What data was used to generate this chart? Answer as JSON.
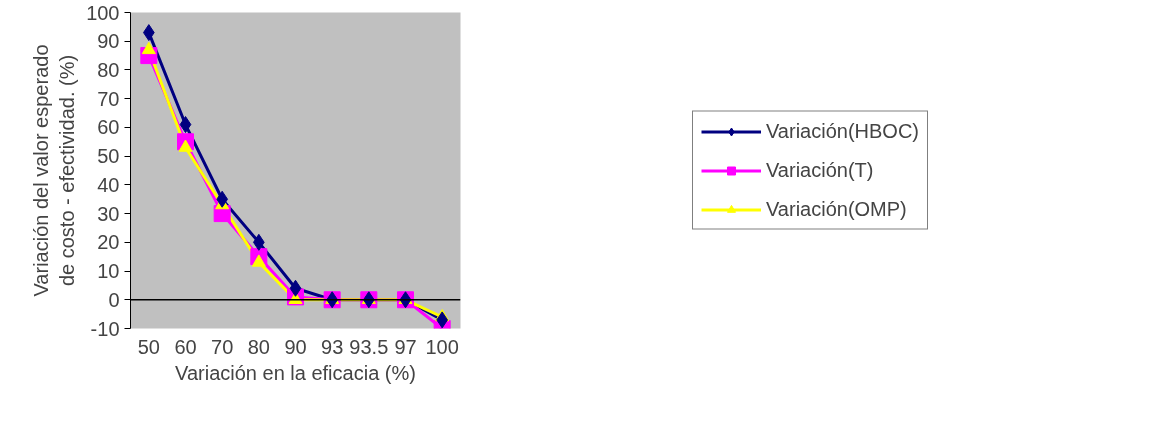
{
  "chart_data": {
    "type": "line",
    "xlabel": "Variación en la eficacia (%)",
    "ylabel": "Variación del valor esperado\nde costo - efectividad. (%)",
    "categories": [
      "50",
      "60",
      "70",
      "80",
      "90",
      "93",
      "93.5",
      "97",
      "100"
    ],
    "ylim": [
      -10,
      100
    ],
    "yticks": [
      -10,
      0,
      10,
      20,
      30,
      40,
      50,
      60,
      70,
      80,
      90,
      100
    ],
    "legend": "right",
    "grid": false,
    "ref_lines": [
      {
        "axis": "y",
        "value": 0,
        "color": "#000000"
      }
    ],
    "series": [
      {
        "name": "Variación(HBOC)",
        "color": "#000080",
        "marker": "diamond",
        "values": [
          93,
          61,
          35,
          20,
          4,
          0,
          0,
          0,
          -7
        ]
      },
      {
        "name": "Variación(T)",
        "color": "#ff00ff",
        "marker": "square",
        "values": [
          85,
          55,
          30,
          15,
          1,
          0,
          0,
          0,
          -10
        ]
      },
      {
        "name": "Variación(OMP)",
        "color": "#ffff00",
        "marker": "triangle",
        "values": [
          87,
          53,
          33,
          13,
          0,
          0,
          0,
          0,
          -6
        ]
      }
    ]
  }
}
